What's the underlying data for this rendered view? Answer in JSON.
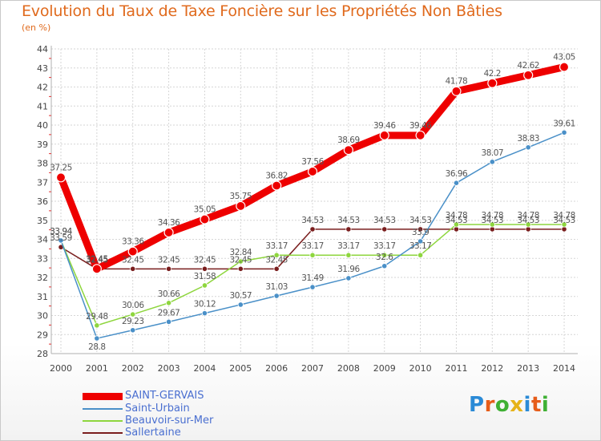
{
  "chart_data": {
    "type": "line",
    "title": "Evolution du Taux de Taxe Foncière sur les Propriétés Non Bâties",
    "ylabel": "(en %)",
    "xlabel": "",
    "x": [
      "2000",
      "2001",
      "2002",
      "2003",
      "2004",
      "2005",
      "2006",
      "2007",
      "2008",
      "2009",
      "2010",
      "2011",
      "2012",
      "2013",
      "2014"
    ],
    "ylim": [
      28,
      44
    ],
    "yticks": [
      "28",
      "29",
      "30",
      "31",
      "32",
      "33",
      "34",
      "35",
      "36",
      "37",
      "38",
      "39",
      "40",
      "41",
      "42",
      "43",
      "44"
    ],
    "series": [
      {
        "name": "SAINT-GERVAIS",
        "color": "#ee0000",
        "values": [
          37.25,
          32.45,
          33.36,
          34.36,
          35.05,
          35.75,
          36.82,
          37.56,
          38.69,
          39.46,
          39.46,
          41.78,
          42.2,
          42.62,
          43.05
        ]
      },
      {
        "name": "Saint-Urbain",
        "color": "#4a90c8",
        "values": [
          33.94,
          28.8,
          29.23,
          29.67,
          30.12,
          30.57,
          31.03,
          31.49,
          31.96,
          32.6,
          33.9,
          36.96,
          38.07,
          38.83,
          39.61
        ]
      },
      {
        "name": "Beauvoir-sur-Mer",
        "color": "#8ed63e",
        "values": [
          33.94,
          29.48,
          30.06,
          30.66,
          31.58,
          32.84,
          33.17,
          33.17,
          33.17,
          33.17,
          33.17,
          34.78,
          34.78,
          34.78,
          34.78
        ]
      },
      {
        "name": "Sallertaine",
        "color": "#7a1e1e",
        "values": [
          33.59,
          32.45,
          32.45,
          32.45,
          32.45,
          32.45,
          32.45,
          34.53,
          34.53,
          34.53,
          34.53,
          34.53,
          34.53,
          34.53,
          34.53
        ]
      }
    ],
    "data_labels": [
      {
        "series": 0,
        "labels": [
          "37.25",
          "32.45",
          "33.36",
          "34.36",
          "35.05",
          "35.75",
          "36.82",
          "37.56",
          "38.69",
          "39.46",
          "39.46",
          "41.78",
          "42.2",
          "42.62",
          "43.05"
        ]
      },
      {
        "series": 1,
        "labels": [
          "33.94",
          "28.8",
          "29.23",
          "29.67",
          "30.12",
          "30.57",
          "31.03",
          "31.49",
          "31.96",
          "32.6",
          "33.9",
          "36.96",
          "38.07",
          "38.83",
          "39.61"
        ]
      },
      {
        "series": 2,
        "labels": [
          "33.94",
          "29.48",
          "30.06",
          "30.66",
          "31.58",
          "32.84",
          "33.17",
          "33.17",
          "33.17",
          "33.17",
          "33.17",
          "34.78",
          "34.78",
          "34.78",
          "34.78"
        ]
      },
      {
        "series": 3,
        "labels": [
          "33.59",
          "32.45",
          "32.45",
          "32.45",
          "32.45",
          "32.45",
          "32.45",
          "34.53",
          "34.53",
          "34.53",
          "34.53",
          "34.53",
          "34.53",
          "34.53",
          "34.53"
        ]
      }
    ],
    "grid": true,
    "legend_position": "bottom-left"
  },
  "branding": {
    "logo_text": "Proxiti"
  }
}
